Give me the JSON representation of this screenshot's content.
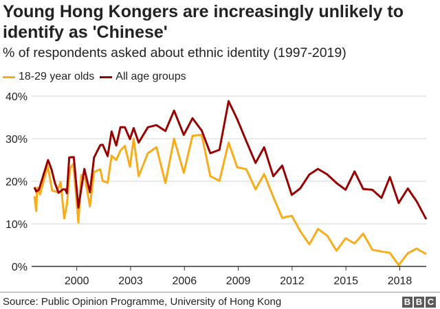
{
  "chart_data": {
    "type": "line",
    "title": "Young Hong Kongers are increasingly unlikely to identify as 'Chinese'",
    "subtitle": "% of respondents asked about ethnic identity (1997-2019)",
    "xlabel": "",
    "ylabel": "",
    "xlim": [
      1997.5,
      2019.6
    ],
    "ylim": [
      0,
      40
    ],
    "x_ticks": [
      2000,
      2003,
      2006,
      2009,
      2012,
      2015,
      2018
    ],
    "x_tick_labels": [
      "2000",
      "2003",
      "2006",
      "2009",
      "2012",
      "2015",
      "2018"
    ],
    "y_ticks": [
      0,
      10,
      20,
      30,
      40
    ],
    "y_tick_labels": [
      "0%",
      "10%",
      "20%",
      "30%",
      "40%"
    ],
    "grid": true,
    "legend_position": "top-left",
    "series": [
      {
        "name": "18-29 year olds",
        "color": "#FAAB18",
        "x": [
          1997.64,
          1997.74,
          1997.79,
          1997.95,
          1998.38,
          1998.63,
          1998.89,
          1999.1,
          1999.3,
          1999.45,
          1999.62,
          1999.81,
          2000.09,
          2000.25,
          2000.47,
          2000.73,
          2000.96,
          2001.31,
          2001.44,
          2001.72,
          2001.94,
          2002.2,
          2002.43,
          2002.68,
          2002.96,
          2003.17,
          2003.45,
          2003.96,
          2004.44,
          2004.94,
          2005.42,
          2005.96,
          2006.45,
          2006.96,
          2007.44,
          2007.95,
          2008.46,
          2008.94,
          2009.45,
          2009.96,
          2010.44,
          2010.95,
          2011.45,
          2011.98,
          2012.45,
          2012.96,
          2013.44,
          2013.96,
          2014.47,
          2014.98,
          2015.48,
          2015.96,
          2016.47,
          2016.98,
          2017.45,
          2017.94,
          2018.45,
          2018.94,
          2019.47
        ],
        "y": [
          16.5,
          13.0,
          18.5,
          16.9,
          23.6,
          17.8,
          17.5,
          19.8,
          11.3,
          14.5,
          23.0,
          24.1,
          10.3,
          21.5,
          20.4,
          14.1,
          22.2,
          22.8,
          20.1,
          19.7,
          26.0,
          25.0,
          27.2,
          28.3,
          23.4,
          30.0,
          21.2,
          26.6,
          28.0,
          19.6,
          30.0,
          22.0,
          30.7,
          30.9,
          21.2,
          20.1,
          29.1,
          23.3,
          22.8,
          18.1,
          21.7,
          16.3,
          11.4,
          11.9,
          8.3,
          5.2,
          8.8,
          7.2,
          3.7,
          6.6,
          5.4,
          7.7,
          3.9,
          3.5,
          3.2,
          0.3,
          3.1,
          4.2,
          2.9
        ]
      },
      {
        "name": "All age groups",
        "color": "#990000",
        "x": [
          1997.64,
          1997.74,
          1997.89,
          1998.4,
          1998.59,
          1998.78,
          1998.98,
          1999.23,
          1999.36,
          1999.45,
          1999.58,
          1999.83,
          2000.09,
          2000.42,
          2000.73,
          2000.96,
          2001.31,
          2001.44,
          2001.72,
          2001.94,
          2002.2,
          2002.43,
          2002.68,
          2002.96,
          2003.17,
          2003.45,
          2003.96,
          2004.44,
          2004.94,
          2005.42,
          2005.96,
          2006.45,
          2006.96,
          2007.44,
          2007.95,
          2008.46,
          2008.94,
          2009.45,
          2009.96,
          2010.44,
          2010.95,
          2011.45,
          2011.98,
          2012.45,
          2012.96,
          2013.44,
          2013.96,
          2014.47,
          2014.98,
          2015.48,
          2015.96,
          2016.47,
          2016.98,
          2017.45,
          2017.94,
          2018.45,
          2018.94,
          2019.47
        ],
        "y": [
          18.6,
          17.6,
          18.0,
          25.0,
          22.8,
          19.6,
          17.3,
          18.1,
          18.1,
          17.2,
          25.6,
          25.7,
          13.8,
          22.9,
          17.4,
          25.6,
          28.5,
          28.6,
          25.9,
          31.7,
          28.4,
          32.7,
          32.7,
          29.9,
          32.5,
          29.1,
          32.7,
          33.2,
          31.8,
          36.6,
          30.9,
          34.8,
          31.9,
          26.6,
          27.4,
          38.8,
          34.6,
          29.4,
          24.3,
          28.0,
          21.2,
          23.7,
          16.8,
          18.3,
          21.6,
          22.9,
          21.6,
          19.6,
          18.0,
          22.3,
          18.2,
          18.0,
          16.1,
          21.0,
          14.9,
          18.3,
          15.3,
          11.1
        ]
      }
    ],
    "source": "Source: Public Opinion Programme, University of Hong Kong"
  },
  "branding": {
    "logo_letters": [
      "B",
      "B",
      "C"
    ]
  }
}
